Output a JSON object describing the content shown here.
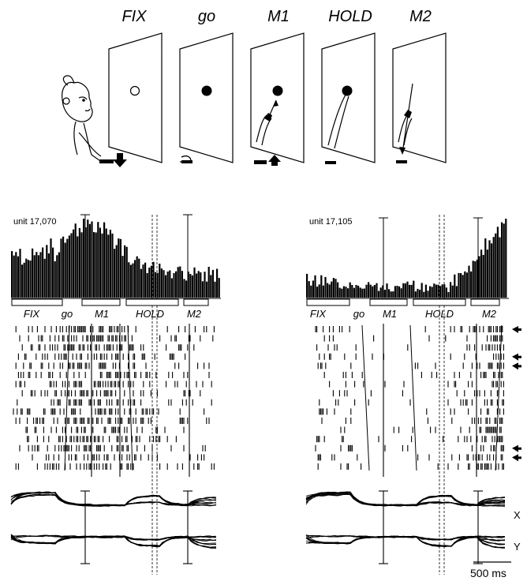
{
  "task": {
    "phases": [
      "FIX",
      "go",
      "M1",
      "HOLD",
      "M2"
    ]
  },
  "neurons": [
    {
      "unit_label": "unit 17,070",
      "epoch_labels": [
        "FIX",
        "go",
        "M1",
        "HOLD",
        "M2"
      ],
      "tuning": "early",
      "arrow_rows": []
    },
    {
      "unit_label": "unit 17,105",
      "epoch_labels": [
        "FIX",
        "go",
        "M1",
        "HOLD",
        "M2"
      ],
      "tuning": "late",
      "arrow_rows": [
        0,
        3,
        4,
        13,
        14
      ]
    }
  ],
  "traces": {
    "x_label": "X",
    "y_label": "Y"
  },
  "scalebar": {
    "label": "500 ms"
  }
}
